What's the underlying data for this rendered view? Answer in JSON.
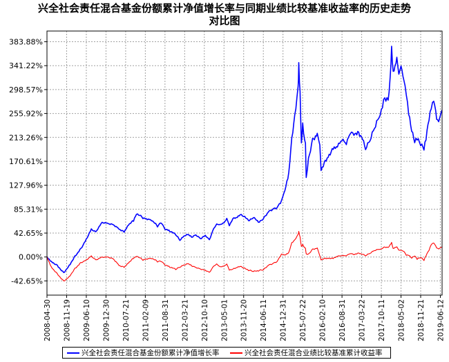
{
  "chart_data": {
    "type": "line",
    "title_line1": "兴全社会责任混合基金份额累计净值增长率与同期业绩比较基准收益率的历史走势",
    "title_line2": "对比图",
    "y_ticks": [
      "383.88%",
      "341.22%",
      "298.57%",
      "255.92%",
      "213.26%",
      "170.61%",
      "127.96%",
      "85.31%",
      "42.65%",
      "0.00%",
      "-42.65%"
    ],
    "y_tick_values": [
      383.88,
      341.22,
      298.57,
      255.92,
      213.26,
      170.61,
      127.96,
      85.31,
      42.65,
      0.0,
      -42.65
    ],
    "ylim": [
      -68,
      403
    ],
    "x_ticks": [
      "2008-04-30",
      "2008-11-19",
      "2009-06-10",
      "2009-12-30",
      "2010-07-21",
      "2011-02-09",
      "2011-08-31",
      "2012-03-21",
      "2012-10-10",
      "2013-05-01",
      "2013-11-20",
      "2014-06-11",
      "2014-12-31",
      "2015-07-22",
      "2016-02-10",
      "2016-08-31",
      "2017-03-22",
      "2017-10-11",
      "2018-05-02",
      "2018-11-21",
      "2019-06-12"
    ],
    "xlim": [
      "2008-04-30",
      "2019-06-30"
    ],
    "grid": true,
    "legend_position": "bottom",
    "series": [
      {
        "name": "兴全社会责任混合基金份额累计净值增长率",
        "color": "#0000ff",
        "points": [
          [
            "2008-04-30",
            0
          ],
          [
            "2008-06-15",
            -8
          ],
          [
            "2008-08-15",
            -15
          ],
          [
            "2008-10-20",
            -28
          ],
          [
            "2008-12-15",
            -15
          ],
          [
            "2009-02-15",
            2
          ],
          [
            "2009-04-15",
            15
          ],
          [
            "2009-06-10",
            32
          ],
          [
            "2009-08-01",
            50
          ],
          [
            "2009-09-15",
            45
          ],
          [
            "2009-11-20",
            62
          ],
          [
            "2010-01-20",
            60
          ],
          [
            "2010-03-15",
            58
          ],
          [
            "2010-05-15",
            50
          ],
          [
            "2010-07-05",
            45
          ],
          [
            "2010-08-20",
            58
          ],
          [
            "2010-10-10",
            65
          ],
          [
            "2010-11-10",
            78
          ],
          [
            "2011-01-15",
            70
          ],
          [
            "2011-03-01",
            68
          ],
          [
            "2011-04-15",
            66
          ],
          [
            "2011-06-15",
            55
          ],
          [
            "2011-07-20",
            62
          ],
          [
            "2011-09-01",
            50
          ],
          [
            "2011-10-20",
            46
          ],
          [
            "2011-12-20",
            40
          ],
          [
            "2012-02-01",
            30
          ],
          [
            "2012-03-21",
            38
          ],
          [
            "2012-05-01",
            40
          ],
          [
            "2012-06-01",
            35
          ],
          [
            "2012-07-15",
            39
          ],
          [
            "2012-09-01",
            32
          ],
          [
            "2012-10-20",
            38
          ],
          [
            "2012-12-01",
            30
          ],
          [
            "2013-01-15",
            50
          ],
          [
            "2013-02-15",
            58
          ],
          [
            "2013-03-20",
            57
          ],
          [
            "2013-05-01",
            60
          ],
          [
            "2013-05-30",
            68
          ],
          [
            "2013-06-25",
            55
          ],
          [
            "2013-08-01",
            68
          ],
          [
            "2013-09-15",
            70
          ],
          [
            "2013-10-15",
            75
          ],
          [
            "2013-11-20",
            72
          ],
          [
            "2014-01-20",
            65
          ],
          [
            "2014-03-01",
            70
          ],
          [
            "2014-05-01",
            62
          ],
          [
            "2014-06-11",
            68
          ],
          [
            "2014-08-01",
            80
          ],
          [
            "2014-09-15",
            85
          ],
          [
            "2014-11-01",
            88
          ],
          [
            "2014-12-15",
            100
          ],
          [
            "2015-01-20",
            118
          ],
          [
            "2015-03-01",
            150
          ],
          [
            "2015-04-01",
            210
          ],
          [
            "2015-05-01",
            250
          ],
          [
            "2015-06-05",
            300
          ],
          [
            "2015-06-12",
            341
          ],
          [
            "2015-06-25",
            290
          ],
          [
            "2015-07-09",
            200
          ],
          [
            "2015-07-22",
            235
          ],
          [
            "2015-08-20",
            200
          ],
          [
            "2015-08-28",
            140
          ],
          [
            "2015-09-20",
            175
          ],
          [
            "2015-11-01",
            210
          ],
          [
            "2015-12-20",
            220
          ],
          [
            "2016-01-15",
            200
          ],
          [
            "2016-01-28",
            155
          ],
          [
            "2016-03-01",
            170
          ],
          [
            "2016-04-10",
            180
          ],
          [
            "2016-06-01",
            195
          ],
          [
            "2016-07-15",
            200
          ],
          [
            "2016-08-31",
            212
          ],
          [
            "2016-10-15",
            205
          ],
          [
            "2016-11-25",
            225
          ],
          [
            "2017-01-01",
            222
          ],
          [
            "2017-03-01",
            220
          ],
          [
            "2017-03-22",
            218
          ],
          [
            "2017-05-01",
            195
          ],
          [
            "2017-06-15",
            210
          ],
          [
            "2017-08-01",
            232
          ],
          [
            "2017-09-15",
            250
          ],
          [
            "2017-10-11",
            265
          ],
          [
            "2017-11-15",
            285
          ],
          [
            "2017-12-20",
            280
          ],
          [
            "2018-01-10",
            320
          ],
          [
            "2018-01-25",
            375
          ],
          [
            "2018-02-10",
            330
          ],
          [
            "2018-03-01",
            340
          ],
          [
            "2018-03-20",
            355
          ],
          [
            "2018-04-10",
            325
          ],
          [
            "2018-05-02",
            340
          ],
          [
            "2018-06-01",
            315
          ],
          [
            "2018-06-25",
            290
          ],
          [
            "2018-07-20",
            255
          ],
          [
            "2018-08-20",
            225
          ],
          [
            "2018-09-20",
            205
          ],
          [
            "2018-10-15",
            210
          ],
          [
            "2018-11-21",
            200
          ],
          [
            "2018-12-25",
            192
          ],
          [
            "2019-01-15",
            210
          ],
          [
            "2019-02-15",
            245
          ],
          [
            "2019-03-10",
            265
          ],
          [
            "2019-04-05",
            278
          ],
          [
            "2019-05-05",
            245
          ],
          [
            "2019-05-25",
            240
          ],
          [
            "2019-06-12",
            250
          ],
          [
            "2019-06-28",
            262
          ]
        ]
      },
      {
        "name": "兴全社会责任混合业绩比较基准累计收益率",
        "color": "#ff0000",
        "points": [
          [
            "2008-04-30",
            0
          ],
          [
            "2008-06-15",
            -18
          ],
          [
            "2008-08-15",
            -30
          ],
          [
            "2008-10-20",
            -43
          ],
          [
            "2008-12-15",
            -35
          ],
          [
            "2009-02-15",
            -20
          ],
          [
            "2009-04-15",
            -10
          ],
          [
            "2009-06-10",
            -5
          ],
          [
            "2009-08-01",
            2
          ],
          [
            "2009-09-15",
            -5
          ],
          [
            "2009-11-20",
            0
          ],
          [
            "2010-01-20",
            0
          ],
          [
            "2010-03-15",
            -3
          ],
          [
            "2010-05-15",
            -15
          ],
          [
            "2010-07-05",
            -18
          ],
          [
            "2010-08-20",
            -10
          ],
          [
            "2010-10-10",
            -2
          ],
          [
            "2010-11-10",
            2
          ],
          [
            "2011-01-15",
            -5
          ],
          [
            "2011-03-01",
            -3
          ],
          [
            "2011-04-15",
            -2
          ],
          [
            "2011-06-15",
            -8
          ],
          [
            "2011-07-20",
            -7
          ],
          [
            "2011-09-01",
            -14
          ],
          [
            "2011-10-20",
            -18
          ],
          [
            "2011-12-20",
            -22
          ],
          [
            "2012-02-01",
            -18
          ],
          [
            "2012-03-21",
            -14
          ],
          [
            "2012-05-01",
            -12
          ],
          [
            "2012-06-01",
            -16
          ],
          [
            "2012-07-15",
            -19
          ],
          [
            "2012-09-01",
            -22
          ],
          [
            "2012-10-20",
            -24
          ],
          [
            "2012-12-01",
            -28
          ],
          [
            "2013-01-15",
            -17
          ],
          [
            "2013-02-15",
            -13
          ],
          [
            "2013-03-20",
            -18
          ],
          [
            "2013-05-01",
            -17
          ],
          [
            "2013-05-30",
            -13
          ],
          [
            "2013-06-25",
            -24
          ],
          [
            "2013-08-01",
            -22
          ],
          [
            "2013-09-15",
            -19
          ],
          [
            "2013-10-15",
            -17
          ],
          [
            "2013-11-20",
            -20
          ],
          [
            "2014-01-20",
            -24
          ],
          [
            "2014-03-01",
            -26
          ],
          [
            "2014-05-01",
            -24
          ],
          [
            "2014-06-11",
            -23
          ],
          [
            "2014-08-01",
            -15
          ],
          [
            "2014-09-15",
            -12
          ],
          [
            "2014-11-01",
            -8
          ],
          [
            "2014-12-15",
            5
          ],
          [
            "2015-01-20",
            3
          ],
          [
            "2015-03-01",
            8
          ],
          [
            "2015-04-01",
            25
          ],
          [
            "2015-05-01",
            30
          ],
          [
            "2015-06-05",
            40
          ],
          [
            "2015-06-12",
            45
          ],
          [
            "2015-06-25",
            35
          ],
          [
            "2015-07-09",
            18
          ],
          [
            "2015-07-22",
            22
          ],
          [
            "2015-08-20",
            15
          ],
          [
            "2015-08-28",
            5
          ],
          [
            "2015-09-20",
            5
          ],
          [
            "2015-11-01",
            14
          ],
          [
            "2015-12-20",
            16
          ],
          [
            "2016-01-15",
            2
          ],
          [
            "2016-01-28",
            -5
          ],
          [
            "2016-03-01",
            -2
          ],
          [
            "2016-04-10",
            -2
          ],
          [
            "2016-06-01",
            -2
          ],
          [
            "2016-07-15",
            2
          ],
          [
            "2016-08-31",
            3
          ],
          [
            "2016-10-15",
            3
          ],
          [
            "2016-11-25",
            7
          ],
          [
            "2017-01-01",
            5
          ],
          [
            "2017-03-01",
            7
          ],
          [
            "2017-03-22",
            6
          ],
          [
            "2017-05-01",
            3
          ],
          [
            "2017-06-15",
            7
          ],
          [
            "2017-08-01",
            12
          ],
          [
            "2017-09-15",
            14
          ],
          [
            "2017-10-11",
            15
          ],
          [
            "2017-11-15",
            18
          ],
          [
            "2017-12-20",
            17
          ],
          [
            "2018-01-10",
            22
          ],
          [
            "2018-01-25",
            26
          ],
          [
            "2018-02-10",
            15
          ],
          [
            "2018-03-01",
            17
          ],
          [
            "2018-03-20",
            18
          ],
          [
            "2018-04-10",
            12
          ],
          [
            "2018-05-02",
            12
          ],
          [
            "2018-06-01",
            10
          ],
          [
            "2018-06-25",
            3
          ],
          [
            "2018-07-20",
            3
          ],
          [
            "2018-08-20",
            -2
          ],
          [
            "2018-09-20",
            2
          ],
          [
            "2018-10-15",
            -4
          ],
          [
            "2018-11-21",
            -1
          ],
          [
            "2018-12-25",
            -6
          ],
          [
            "2019-01-15",
            2
          ],
          [
            "2019-02-15",
            12
          ],
          [
            "2019-03-10",
            22
          ],
          [
            "2019-04-05",
            25
          ],
          [
            "2019-05-05",
            16
          ],
          [
            "2019-05-25",
            14
          ],
          [
            "2019-06-12",
            16
          ],
          [
            "2019-06-28",
            18
          ]
        ]
      }
    ]
  }
}
